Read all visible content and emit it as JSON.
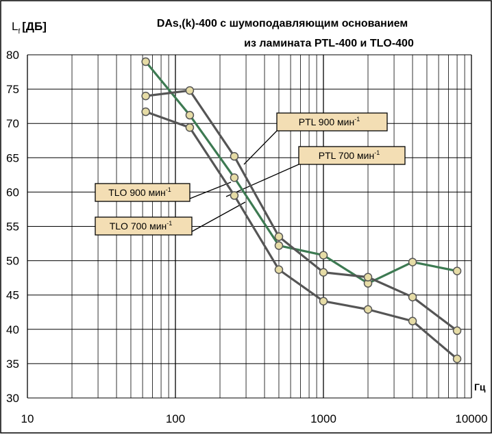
{
  "chart_data": {
    "type": "line",
    "title_line1": "DAs,(k)-400   с шумоподавляющим основанием",
    "title_line2": "из ламината PTL-400 и TLO-400",
    "ylabel": "L",
    "ylabel_sub": "f",
    "ylabel_unit": "[ДБ]",
    "xlabel": "Гц",
    "x_scale": "log",
    "xlim": [
      10,
      10000
    ],
    "ylim": [
      30,
      80
    ],
    "grid": true,
    "x_ticks": [
      "10",
      "100",
      "1000",
      "10000"
    ],
    "y_ticks": [
      "30",
      "35",
      "40",
      "45",
      "50",
      "55",
      "60",
      "65",
      "70",
      "75",
      "80"
    ],
    "colors": {
      "green": "#3d7a52",
      "gray": "#555555",
      "marker_fill": "#e6dca6",
      "label_fill": "#f3deb4"
    },
    "series": [
      {
        "label": "PTL 900 мин",
        "label_sup": "-1",
        "color": "#3d7a52",
        "x": [
          63,
          125,
          250,
          500,
          1000,
          2000,
          4000,
          8000
        ],
        "y": [
          79,
          71.2,
          62.1,
          52.2,
          50.8,
          46.7,
          49.8,
          48.5
        ]
      },
      {
        "label": "PTL 700 мин",
        "label_sup": "-1",
        "color": "#555555",
        "x": [
          63,
          125,
          250,
          500,
          1000,
          2000,
          4000,
          8000
        ],
        "y": [
          74,
          74.8,
          65.2,
          53.5,
          48.3,
          47.6,
          44.7,
          39.8
        ]
      },
      {
        "label": "TLO 900 мин",
        "label_sup": "-1",
        "color": "#555555",
        "x": [
          63,
          125,
          250,
          500,
          1000,
          2000,
          4000,
          8000
        ],
        "y": [
          71.7,
          69.4,
          59.5,
          48.7,
          44.1,
          42.9,
          41.2,
          35.7
        ]
      },
      {
        "label": "TLO 700 мин",
        "label_sup": "-1",
        "color": "#555555",
        "x": [],
        "y": []
      }
    ]
  }
}
